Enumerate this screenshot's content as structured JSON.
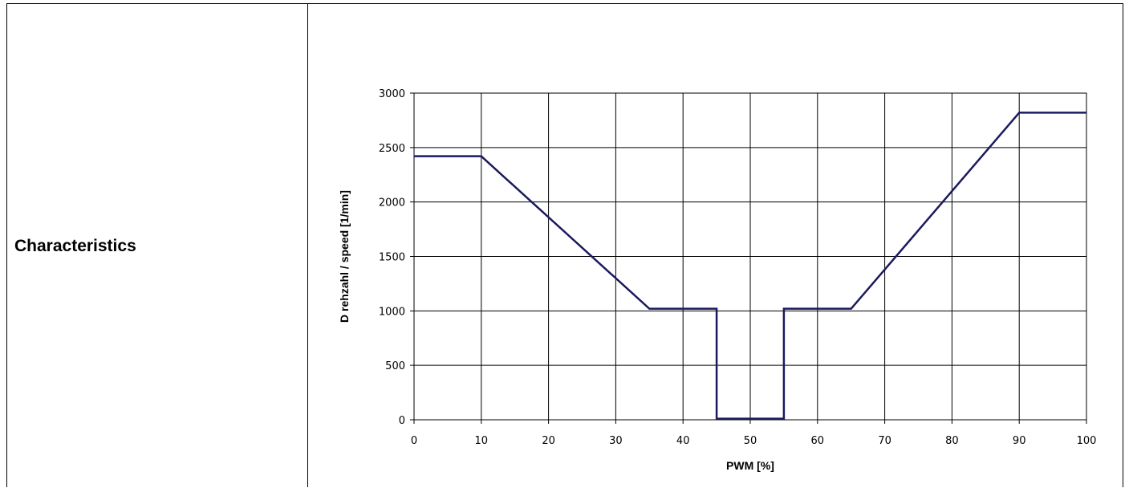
{
  "row": {
    "label": "Characteristics"
  },
  "chart_data": {
    "type": "line",
    "title": "",
    "xlabel": "PWM [%]",
    "ylabel": "D rehzahl / speed [1/min]",
    "xlim": [
      0,
      100
    ],
    "ylim": [
      0,
      3000
    ],
    "xticks": [
      0,
      10,
      20,
      30,
      40,
      50,
      60,
      70,
      80,
      90,
      100
    ],
    "yticks": [
      0,
      500,
      1000,
      1500,
      2000,
      2500,
      3000
    ],
    "grid": true,
    "legend": "none",
    "series": [
      {
        "x": [
          0,
          10,
          35,
          45,
          45,
          55,
          55,
          65,
          90,
          100
        ],
        "y": [
          2420,
          2420,
          1020,
          1020,
          10,
          10,
          1020,
          1020,
          2820,
          2820
        ],
        "color": "#1a1a5e"
      }
    ]
  }
}
